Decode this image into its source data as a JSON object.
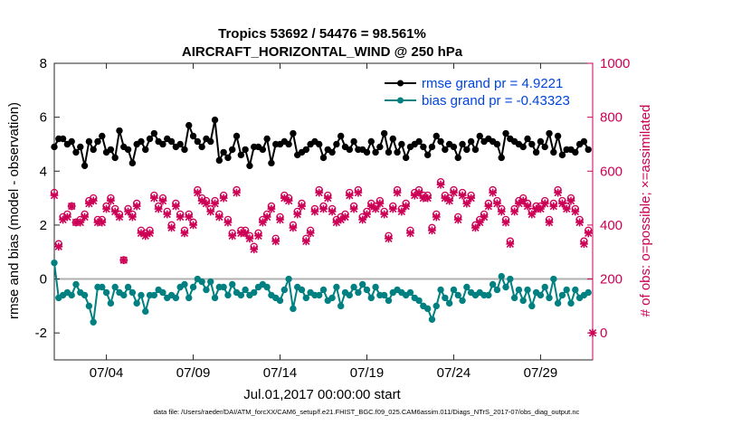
{
  "chart_data": {
    "type": "line",
    "title": "Tropics 53692 / 54476 = 98.561%",
    "subtitle": "AIRCRAFT_HORIZONTAL_WIND @ 250 hPa",
    "xlabel": "Jul.01,2017 00:00:00 start",
    "ylabel_left": "rmse and bias (model - observation)",
    "ylabel_right": "# of obs: o=possible; ×=assimilated",
    "xlim": [
      0,
      124
    ],
    "ylim_left": [
      -3,
      8
    ],
    "ylim_right": [
      -100,
      1000
    ],
    "x_ticks": [
      12,
      32,
      52,
      72,
      92,
      112
    ],
    "x_tick_labels": [
      "07/04",
      "07/09",
      "07/14",
      "07/19",
      "07/24",
      "07/29"
    ],
    "y_left_ticks": [
      -2,
      0,
      2,
      4,
      6,
      8
    ],
    "y_right_ticks": [
      0,
      200,
      400,
      600,
      800,
      1000
    ],
    "zero_line": 0,
    "legend_position": "top-right",
    "colors": {
      "rmse": "#000000",
      "bias": "#008080",
      "obs": "#cc0055",
      "legend_text": "#0044dd",
      "zero_line": "#b0b0b0"
    },
    "series": [
      {
        "name": "rmse grand pr = 4.9221",
        "axis": "left",
        "values": [
          4.9,
          5.2,
          5.2,
          5.0,
          5.1,
          4.7,
          4.9,
          4.2,
          5.1,
          4.8,
          5.1,
          5.3,
          4.7,
          4.8,
          4.5,
          5.5,
          4.9,
          4.8,
          4.3,
          5.0,
          5.1,
          4.8,
          5.2,
          5.4,
          5.1,
          5.0,
          5.2,
          5.1,
          4.9,
          5.0,
          4.8,
          5.7,
          5.3,
          5.1,
          4.9,
          5.2,
          5.1,
          5.9,
          4.4,
          4.7,
          4.5,
          4.8,
          5.3,
          4.6,
          4.8,
          4.2,
          4.9,
          4.9,
          4.8,
          5.2,
          4.3,
          5.0,
          5.0,
          5.1,
          5.0,
          5.4,
          4.6,
          4.7,
          4.8,
          5.0,
          5.1,
          5.0,
          4.5,
          4.8,
          4.7,
          5.0,
          5.3,
          4.9,
          4.8,
          5.1,
          4.8,
          4.8,
          4.7,
          5.1,
          4.7,
          4.9,
          5.4,
          4.7,
          5.2,
          4.7,
          5.0,
          4.5,
          4.9,
          5.0,
          5.1,
          4.9,
          4.6,
          4.9,
          5.3,
          5.1,
          4.8,
          5.0,
          4.9,
          4.5,
          5.0,
          4.8,
          5.1,
          4.8,
          5.3,
          5.1,
          5.2,
          5.1,
          5.0,
          4.5,
          5.4,
          5.2,
          5.1,
          5.0,
          4.9,
          5.2,
          5.0,
          4.7,
          5.1,
          4.9,
          5.4,
          4.7,
          5.3,
          4.6,
          4.8,
          4.8,
          4.7,
          5.0,
          5.1,
          4.8
        ]
      },
      {
        "name": "bias grand pr = -0.43323",
        "axis": "left",
        "values": [
          0.6,
          -0.7,
          -0.6,
          -0.5,
          -0.6,
          -0.2,
          -0.5,
          -0.6,
          -1.0,
          -1.6,
          -0.3,
          -0.3,
          -0.5,
          -0.9,
          -0.3,
          -0.5,
          -0.6,
          -0.3,
          -0.5,
          -0.9,
          -0.6,
          -1.2,
          -0.6,
          -0.6,
          -0.4,
          -0.5,
          -0.7,
          -0.6,
          -0.7,
          -0.3,
          -0.2,
          -0.7,
          -0.3,
          0.0,
          -0.1,
          -0.4,
          -0.1,
          -0.7,
          -0.3,
          -0.3,
          -0.6,
          -0.2,
          -0.5,
          -0.6,
          -0.4,
          -0.6,
          -0.5,
          -0.3,
          -0.2,
          -0.3,
          -0.6,
          -0.7,
          -0.8,
          -0.4,
          0.0,
          -1.1,
          -0.3,
          -0.4,
          -0.7,
          -0.5,
          -0.6,
          -0.6,
          -0.4,
          -0.8,
          -0.7,
          -0.3,
          -1.0,
          -0.5,
          -0.6,
          -0.3,
          -0.5,
          -0.2,
          -0.4,
          -0.7,
          -0.3,
          -0.6,
          -0.6,
          -0.8,
          -0.5,
          -0.4,
          -0.5,
          -0.6,
          -0.5,
          -0.7,
          -0.8,
          -1.0,
          -1.1,
          -1.5,
          -1.0,
          -0.4,
          -0.7,
          -0.9,
          -0.4,
          -0.6,
          -0.8,
          -0.3,
          -0.5,
          -0.6,
          -0.5,
          -0.6,
          -0.6,
          -0.2,
          -0.4,
          0.1,
          -0.3,
          0.0,
          -0.7,
          -0.4,
          -0.8,
          -0.4,
          -1.0,
          -0.5,
          -0.6,
          -0.3,
          -0.7,
          0.0,
          -0.9,
          -0.6,
          -0.4,
          -0.9,
          -0.4,
          -0.7,
          -0.6,
          -0.5
        ]
      },
      {
        "name": "# of obs possible",
        "axis": "right",
        "marker": "o",
        "values": [
          520,
          330,
          430,
          440,
          470,
          410,
          420,
          440,
          490,
          500,
          420,
          420,
          470,
          500,
          460,
          440,
          270,
          460,
          440,
          480,
          380,
          370,
          380,
          510,
          470,
          500,
          450,
          400,
          480,
          440,
          380,
          440,
          410,
          530,
          500,
          490,
          460,
          490,
          440,
          510,
          420,
          370,
          530,
          380,
          380,
          360,
          320,
          370,
          420,
          440,
          470,
          350,
          430,
          510,
          500,
          400,
          450,
          480,
          350,
          380,
          460,
          530,
          470,
          510,
          460,
          420,
          430,
          440,
          520,
          470,
          530,
          430,
          450,
          480,
          470,
          490,
          450,
          360,
          470,
          530,
          460,
          480,
          380,
          520,
          530,
          510,
          510,
          390,
          440,
          560,
          510,
          500,
          530,
          430,
          520,
          490,
          510,
          400,
          420,
          440,
          480,
          530,
          490,
          460,
          420,
          340,
          460,
          490,
          500,
          480,
          450,
          470,
          470,
          490,
          420,
          480,
          530,
          490,
          470,
          500,
          460,
          420,
          340,
          380
        ]
      },
      {
        "name": "# of obs assimilated",
        "axis": "right",
        "marker": "x",
        "values": [
          510,
          320,
          420,
          430,
          470,
          410,
          410,
          430,
          480,
          490,
          410,
          410,
          460,
          490,
          450,
          430,
          270,
          450,
          430,
          470,
          370,
          360,
          370,
          500,
          460,
          490,
          440,
          390,
          470,
          430,
          370,
          430,
          400,
          520,
          490,
          480,
          450,
          480,
          430,
          500,
          410,
          360,
          520,
          370,
          370,
          350,
          310,
          360,
          410,
          430,
          460,
          340,
          420,
          500,
          490,
          390,
          440,
          470,
          340,
          370,
          450,
          520,
          460,
          500,
          450,
          410,
          420,
          430,
          510,
          460,
          520,
          420,
          440,
          470,
          460,
          480,
          440,
          350,
          460,
          520,
          450,
          470,
          370,
          510,
          520,
          500,
          500,
          380,
          430,
          550,
          500,
          490,
          520,
          420,
          510,
          480,
          500,
          390,
          410,
          430,
          470,
          520,
          480,
          450,
          410,
          330,
          450,
          480,
          490,
          470,
          440,
          460,
          460,
          480,
          410,
          470,
          520,
          480,
          460,
          490,
          450,
          410,
          330,
          370
        ]
      },
      {
        "name": "# of obs outlier point",
        "axis": "right",
        "marker": "x",
        "x": [
          124
        ],
        "values": [
          0
        ]
      }
    ],
    "footer": "data file: /Users/raeder/DAI/ATM_forcXX/CAM6_setup/f.e21.FHIST_BGC.f09_025.CAM6assim.011/Diags_NTrS_2017-07/obs_diag_output.nc"
  }
}
